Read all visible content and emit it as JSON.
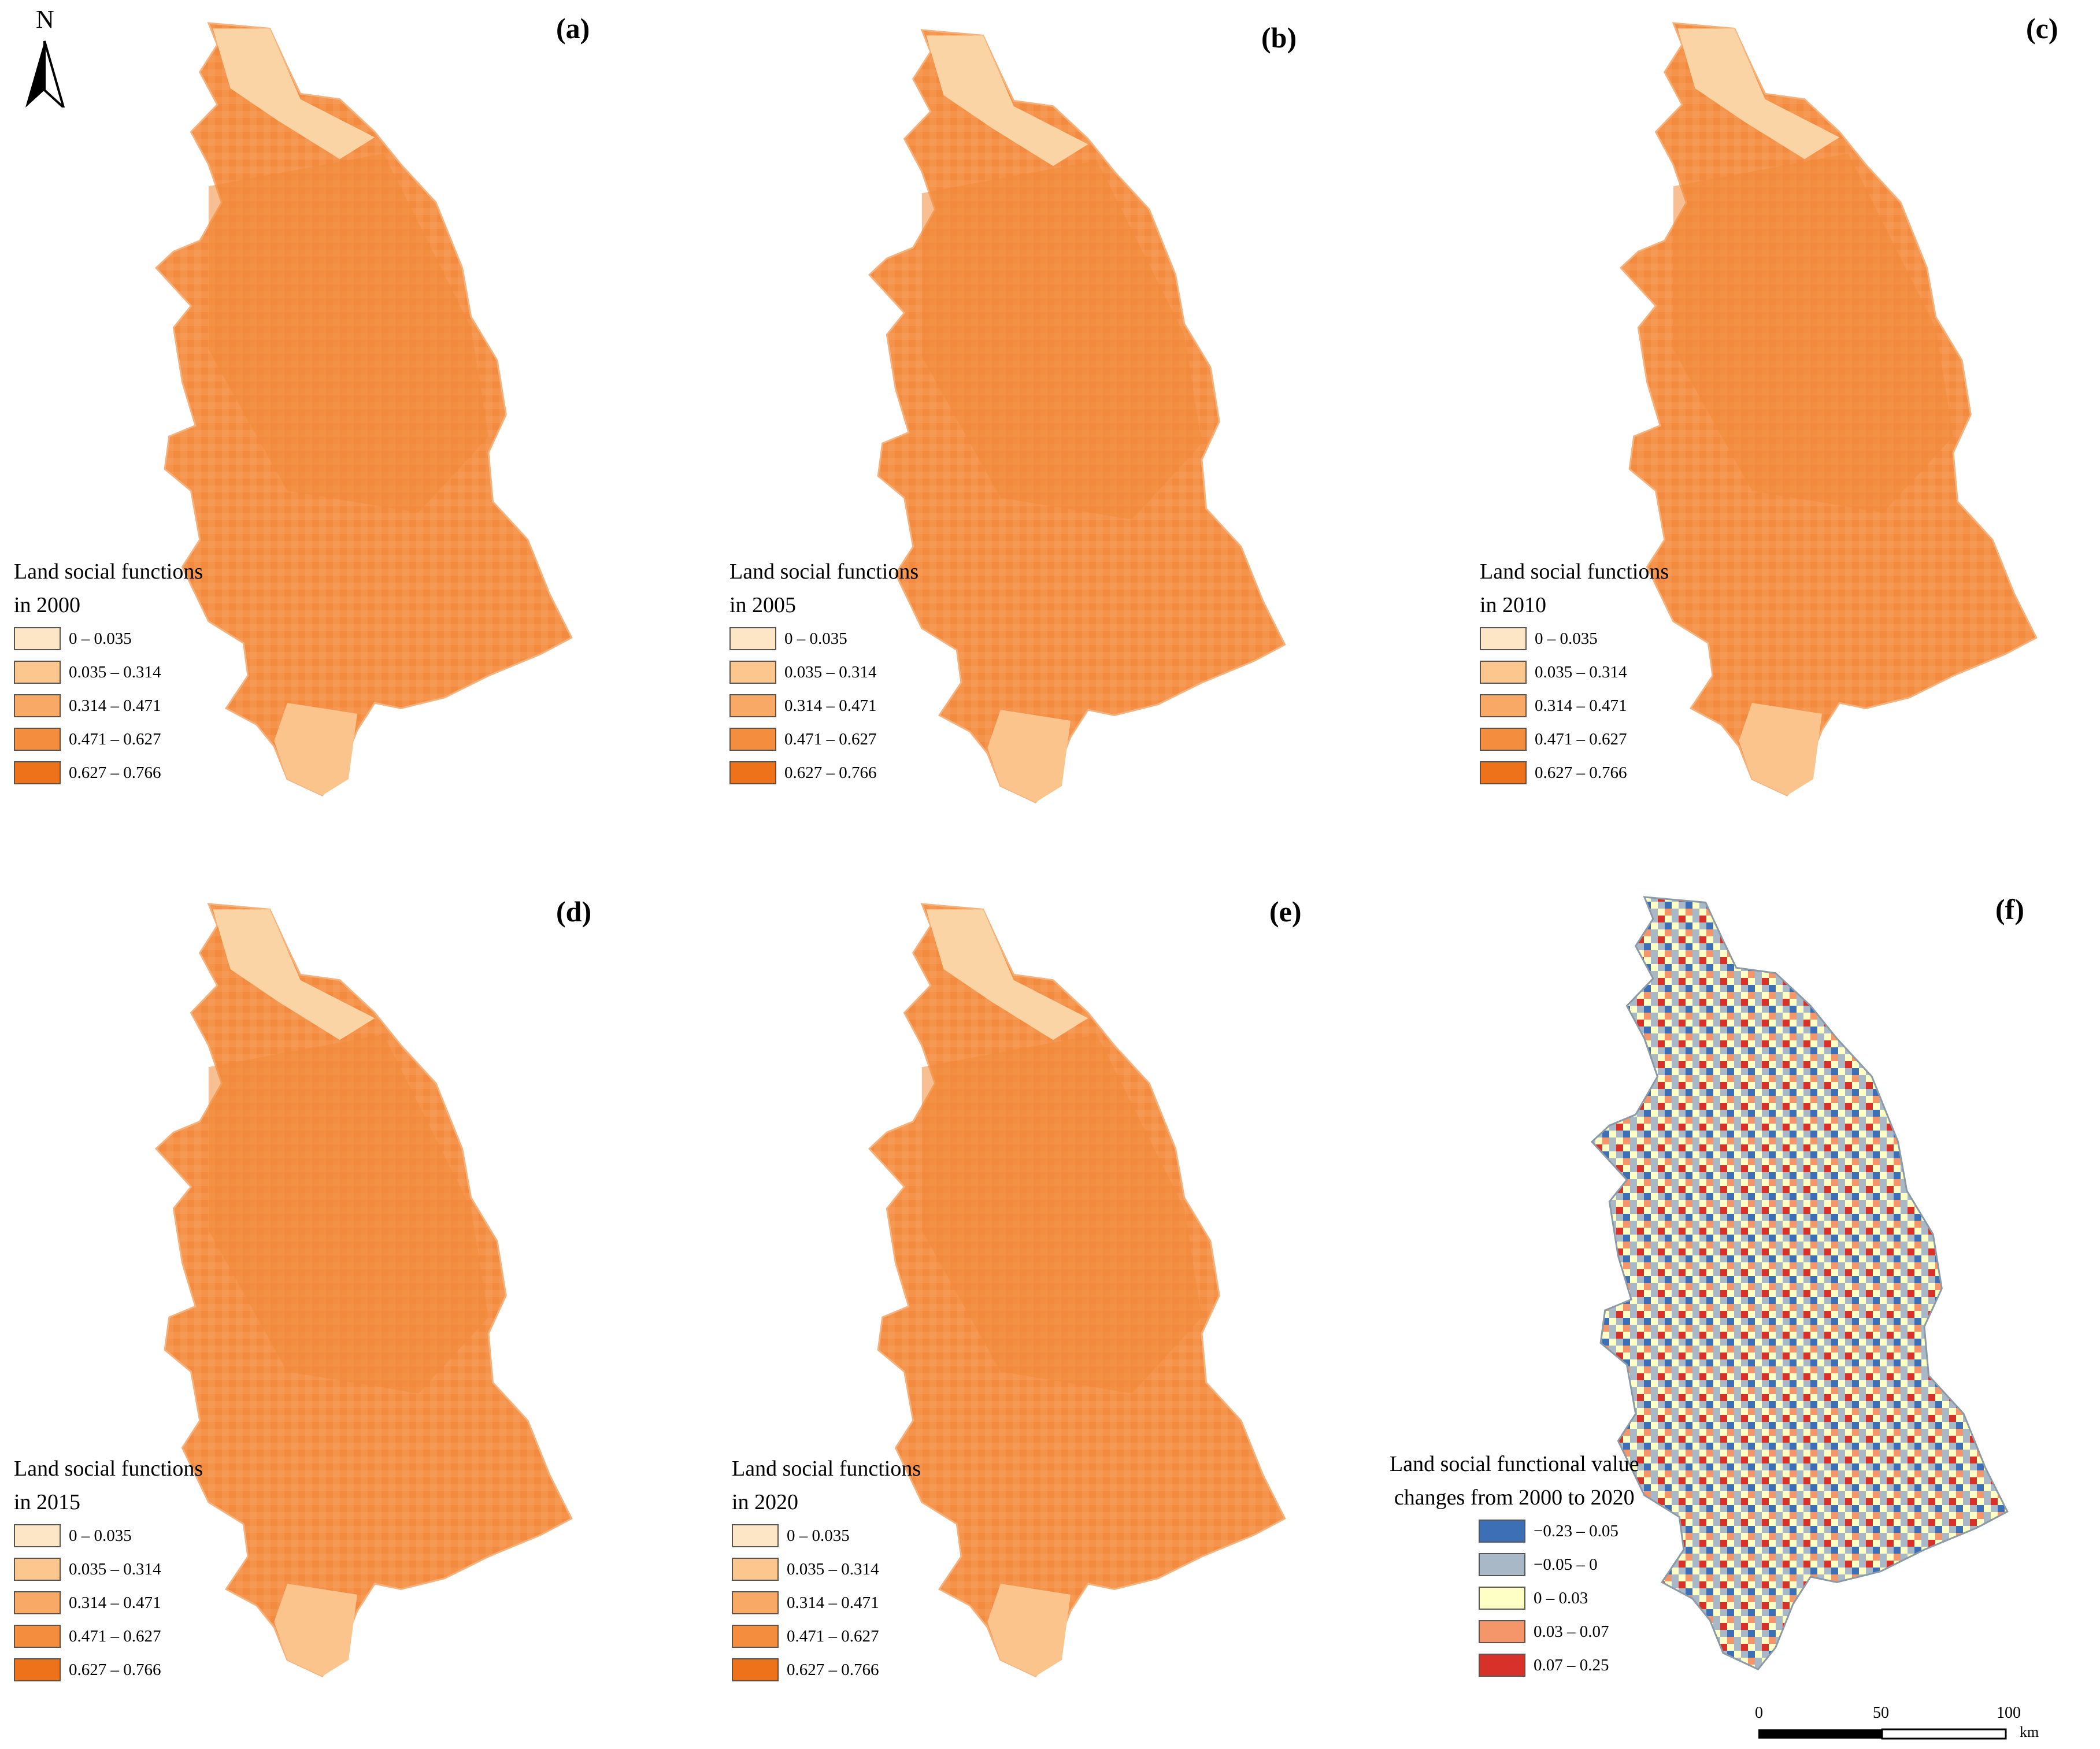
{
  "panels": [
    {
      "id": "a",
      "label": "(a)",
      "title_line1": "Land social functions",
      "title_line2": "in 2000",
      "year": 2000
    },
    {
      "id": "b",
      "label": "(b)",
      "title_line1": "Land social functions",
      "title_line2": "in 2005",
      "year": 2005
    },
    {
      "id": "c",
      "label": "(c)",
      "title_line1": "Land social functions",
      "title_line2": "in 2010",
      "year": 2010
    },
    {
      "id": "d",
      "label": "(d)",
      "title_line1": "Land social functions",
      "title_line2": "in 2015",
      "year": 2015
    },
    {
      "id": "e",
      "label": "(e)",
      "title_line1": "Land social functions",
      "title_line2": "in 2020",
      "year": 2020
    },
    {
      "id": "f",
      "label": "(f)",
      "title_line1": "Land social functional value",
      "title_line2": "changes from 2000 to 2020"
    }
  ],
  "legend_classes": [
    {
      "label": "0 – 0.035",
      "color": "#fde6c6"
    },
    {
      "label": "0.035 – 0.314",
      "color": "#fcc78e"
    },
    {
      "label": "0.314 – 0.471",
      "color": "#f9a966"
    },
    {
      "label": "0.471 – 0.627",
      "color": "#f58d3f"
    },
    {
      "label": "0.627 – 0.766",
      "color": "#ee7219"
    }
  ],
  "change_classes": [
    {
      "label": "−0.23 – 0.05",
      "color": "#3d6fb6"
    },
    {
      "label": "−0.05 – 0",
      "color": "#a8b8c6"
    },
    {
      "label": "0 – 0.03",
      "color": "#feffc4"
    },
    {
      "label": "0.03 – 0.07",
      "color": "#f4966a"
    },
    {
      "label": "0.07 – 0.25",
      "color": "#d7312a"
    }
  ],
  "north_arrow": {
    "letter": "N",
    "icon": "north-arrow-icon"
  },
  "scale_bar": {
    "ticks": [
      "0",
      "50",
      "100"
    ],
    "unit": "km"
  }
}
